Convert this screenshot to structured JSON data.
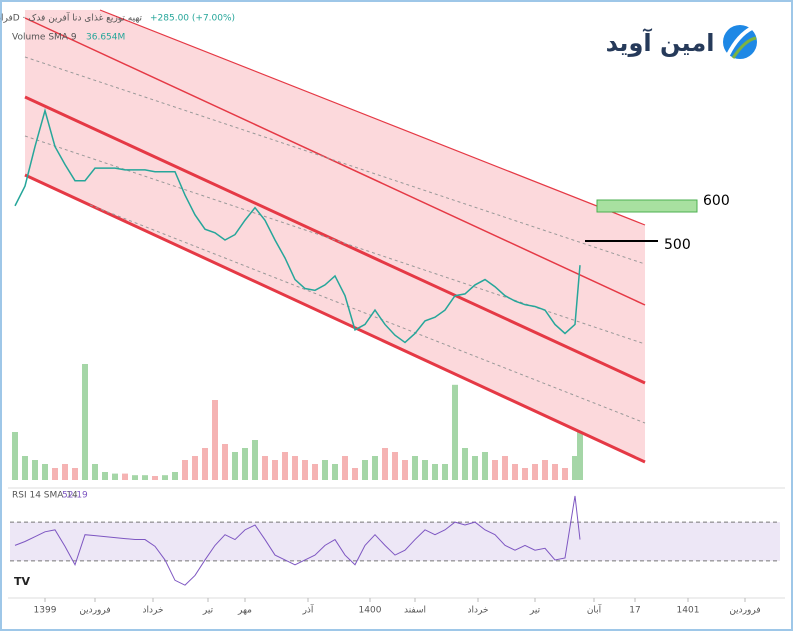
{
  "chart_data": {
    "type": "line",
    "header_title": "فرابورس · 1D · تهیه توزیع غذای دنا آفرین فدک",
    "header_change": "+285.00 (+7.00%)",
    "volume_legend": "Volume SMA 9",
    "volume_value": "36.654M",
    "rsi_legend": "RSI 14 SMA 14",
    "rsi_value": "52.19",
    "logo": "امین آوید",
    "annotations": [
      "600",
      "500"
    ],
    "xlim": [
      0,
      77.5
    ],
    "xticks": [
      {
        "value": 3.5,
        "label": "1399"
      },
      {
        "value": 8.5,
        "label": "فروردین"
      },
      {
        "value": 14.3,
        "label": "خرداد"
      },
      {
        "value": 19.8,
        "label": "تیر"
      },
      {
        "value": 23.5,
        "label": "مهر"
      },
      {
        "value": 29.8,
        "label": "آذر"
      },
      {
        "value": 36,
        "label": "1400"
      },
      {
        "value": 40.5,
        "label": "اسفند"
      },
      {
        "value": 46.8,
        "label": "خرداد"
      },
      {
        "value": 52.5,
        "label": "تیر"
      },
      {
        "value": 58.4,
        "label": "آبان"
      },
      {
        "value": 62.5,
        "label": "17"
      },
      {
        "value": 67.8,
        "label": "1401"
      },
      {
        "value": 73.5,
        "label": "فروردین"
      }
    ],
    "x": [
      0.5,
      1.5,
      2.5,
      3.5,
      4.5,
      5.5,
      6.5,
      7.5,
      8.5,
      9.5,
      10.5,
      11.5,
      12.5,
      13.5,
      14.5,
      15.5,
      16.5,
      17.5,
      18.5,
      19.5,
      20.5,
      21.5,
      22.5,
      23.5,
      24.5,
      25.5,
      26.5,
      27.5,
      28.5,
      29.5,
      30.5,
      31.5,
      32.5,
      33.5,
      34.5,
      35.5,
      36.5,
      37.5,
      38.5,
      39.5,
      40.5,
      41.5,
      42.5,
      43.5,
      44.5,
      45.5,
      46.5,
      47.5,
      48.5,
      49.5,
      50.5,
      51.5,
      52.5,
      53.5,
      54.5,
      55.5,
      56.5,
      57
    ],
    "price": {
      "color": "#26a69a",
      "ylim": [
        -150,
        1130
      ],
      "values": [
        585,
        640,
        750,
        850,
        750,
        700,
        655,
        655,
        690,
        690,
        690,
        685,
        685,
        685,
        680,
        680,
        680,
        615,
        560,
        520,
        510,
        490,
        505,
        545,
        580,
        545,
        490,
        440,
        380,
        355,
        350,
        365,
        390,
        335,
        240,
        255,
        295,
        255,
        225,
        205,
        230,
        265,
        275,
        295,
        335,
        340,
        365,
        380,
        360,
        335,
        320,
        310,
        305,
        295,
        255,
        230,
        255,
        420
      ]
    },
    "volume": {
      "up_color": "#a5d6a7",
      "down_color": "#f5b3b3",
      "ylim": [
        0,
        150
      ],
      "values": [
        60,
        30,
        25,
        20,
        15,
        20,
        15,
        145,
        20,
        10,
        8,
        8,
        6,
        6,
        5,
        6,
        10,
        25,
        30,
        40,
        100,
        45,
        35,
        40,
        50,
        30,
        25,
        35,
        30,
        25,
        20,
        25,
        20,
        30,
        15,
        25,
        30,
        40,
        35,
        25,
        30,
        25,
        20,
        20,
        119,
        40,
        30,
        35,
        25,
        30,
        20,
        15,
        20,
        25,
        20,
        15,
        30,
        81
      ]
    },
    "rsi": {
      "color": "#7e57c2",
      "ylim": [
        0,
        100
      ],
      "bands": [
        30,
        70
      ],
      "values": [
        46,
        50,
        55,
        60,
        62,
        45,
        26,
        57,
        56,
        55,
        54,
        53,
        52,
        52,
        45,
        31,
        10,
        5,
        15,
        31,
        46,
        57,
        52,
        62,
        67,
        52,
        36,
        31,
        26,
        31,
        36,
        46,
        52,
        36,
        26,
        46,
        57,
        46,
        36,
        41,
        52,
        62,
        57,
        62,
        70,
        67,
        70,
        62,
        57,
        46,
        41,
        46,
        41,
        43,
        31,
        33,
        97,
        52
      ]
    }
  }
}
